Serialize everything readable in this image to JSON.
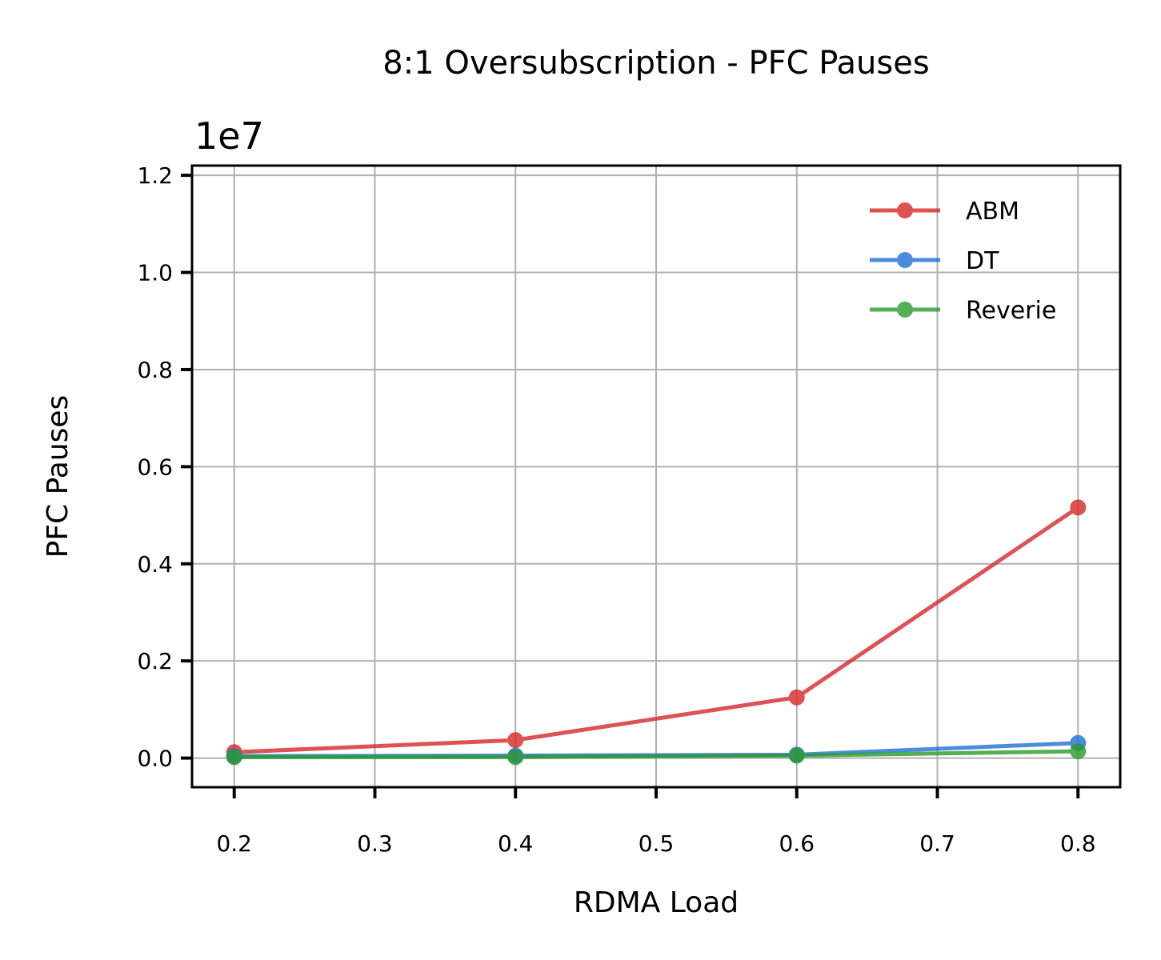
{
  "chart_data": {
    "type": "line",
    "title": "8:1 Oversubscription - PFC Pauses",
    "xlabel": "RDMA Load",
    "ylabel": "PFC Pauses",
    "y_offset_label": "1e7",
    "xlim": [
      0.17,
      0.83
    ],
    "ylim": [
      -0.06,
      1.22
    ],
    "x_ticks": [
      0.2,
      0.3,
      0.4,
      0.5,
      0.6,
      0.7,
      0.8
    ],
    "x_tick_labels": [
      "0.2",
      "0.3",
      "0.4",
      "0.5",
      "0.6",
      "0.7",
      "0.8"
    ],
    "y_ticks": [
      0.0,
      0.2,
      0.4,
      0.6,
      0.8,
      1.0,
      1.2
    ],
    "y_tick_labels": [
      "0.0",
      "0.2",
      "0.4",
      "0.6",
      "0.8",
      "1.0",
      "1.2"
    ],
    "grid": true,
    "legend_position": "top-right",
    "x": [
      0.2,
      0.4,
      0.6,
      0.8
    ],
    "series": [
      {
        "name": "ABM",
        "color": "#d62728",
        "values": [
          0.012,
          0.037,
          0.125,
          0.516
        ]
      },
      {
        "name": "DT",
        "color": "#1f6fd6",
        "values": [
          0.004,
          0.005,
          0.007,
          0.031
        ]
      },
      {
        "name": "Reverie",
        "color": "#2a9a2a",
        "values": [
          0.002,
          0.002,
          0.005,
          0.014
        ]
      }
    ]
  }
}
